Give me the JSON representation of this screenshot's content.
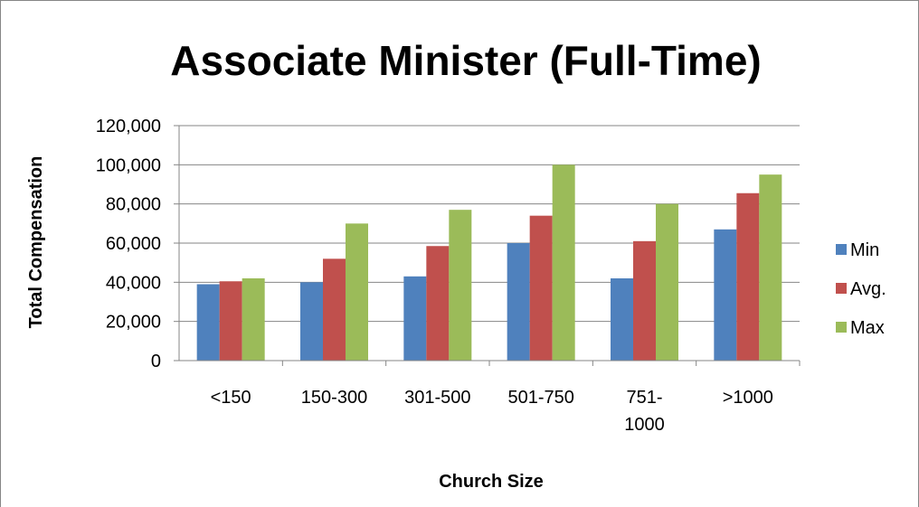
{
  "chart_data": {
    "type": "bar",
    "title": "Associate Minister (Full-Time)",
    "xlabel": "Church Size",
    "ylabel": "Total Compensation",
    "categories": [
      "<150",
      "150-300",
      "301-500",
      "501-750",
      "751-\n1000",
      ">1000"
    ],
    "series": [
      {
        "name": "Min",
        "color": "#4F81BD",
        "values": [
          39000,
          40000,
          43000,
          60000,
          42000,
          67000
        ]
      },
      {
        "name": "Avg.",
        "color": "#C0504D",
        "values": [
          40500,
          52000,
          58500,
          74000,
          61000,
          85500
        ]
      },
      {
        "name": "Max",
        "color": "#9BBB59",
        "values": [
          42000,
          70000,
          77000,
          100000,
          80000,
          95000
        ]
      }
    ],
    "ylim": [
      0,
      120000
    ],
    "yticks": [
      "0",
      "20,000",
      "40,000",
      "60,000",
      "80,000",
      "100,000",
      "120,000"
    ],
    "grid": true,
    "legend": "right"
  }
}
